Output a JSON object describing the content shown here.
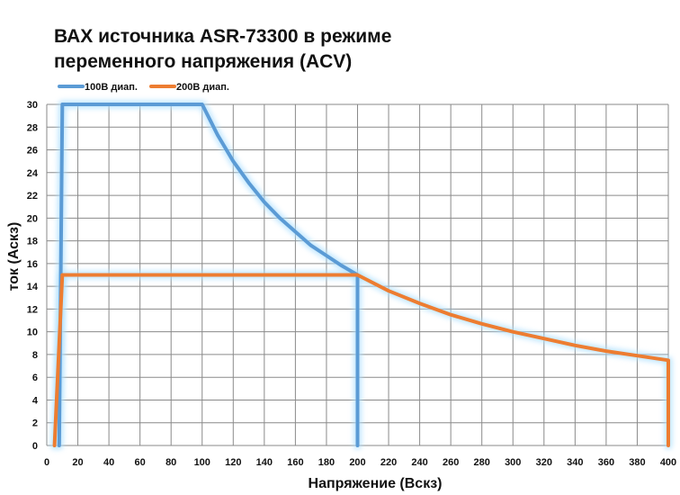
{
  "chart_data": {
    "type": "line",
    "title_lines": [
      "ВАХ источника ASR-73300 в режиме",
      "переменного напряжения (ACV)"
    ],
    "xlabel": "Напряжение (Вскз)",
    "ylabel": "ток (Аскз)",
    "xlim": [
      0,
      400
    ],
    "ylim": [
      0,
      30
    ],
    "x_ticks": [
      0,
      20,
      40,
      60,
      80,
      100,
      120,
      140,
      160,
      180,
      200,
      220,
      240,
      260,
      280,
      300,
      320,
      340,
      360,
      380,
      400
    ],
    "y_ticks": [
      0,
      2,
      4,
      6,
      8,
      10,
      12,
      14,
      16,
      18,
      20,
      22,
      24,
      26,
      28,
      30
    ],
    "grid": true,
    "legend_position": "top-left",
    "series": [
      {
        "name": "100В диап.",
        "color": "#5b9bd5",
        "x": [
          8,
          10,
          100,
          110,
          120,
          130,
          140,
          150,
          160,
          170,
          180,
          190,
          200,
          200
        ],
        "y": [
          0,
          30,
          30,
          27.3,
          25,
          23.1,
          21.4,
          20,
          18.8,
          17.6,
          16.7,
          15.8,
          15,
          0
        ]
      },
      {
        "name": "200В диап.",
        "color": "#ed7d31",
        "x": [
          5,
          10,
          200,
          220,
          240,
          260,
          280,
          300,
          320,
          340,
          360,
          380,
          400,
          400
        ],
        "y": [
          0,
          15,
          15,
          13.6,
          12.5,
          11.5,
          10.7,
          10,
          9.4,
          8.8,
          8.3,
          7.9,
          7.5,
          0
        ]
      }
    ]
  }
}
